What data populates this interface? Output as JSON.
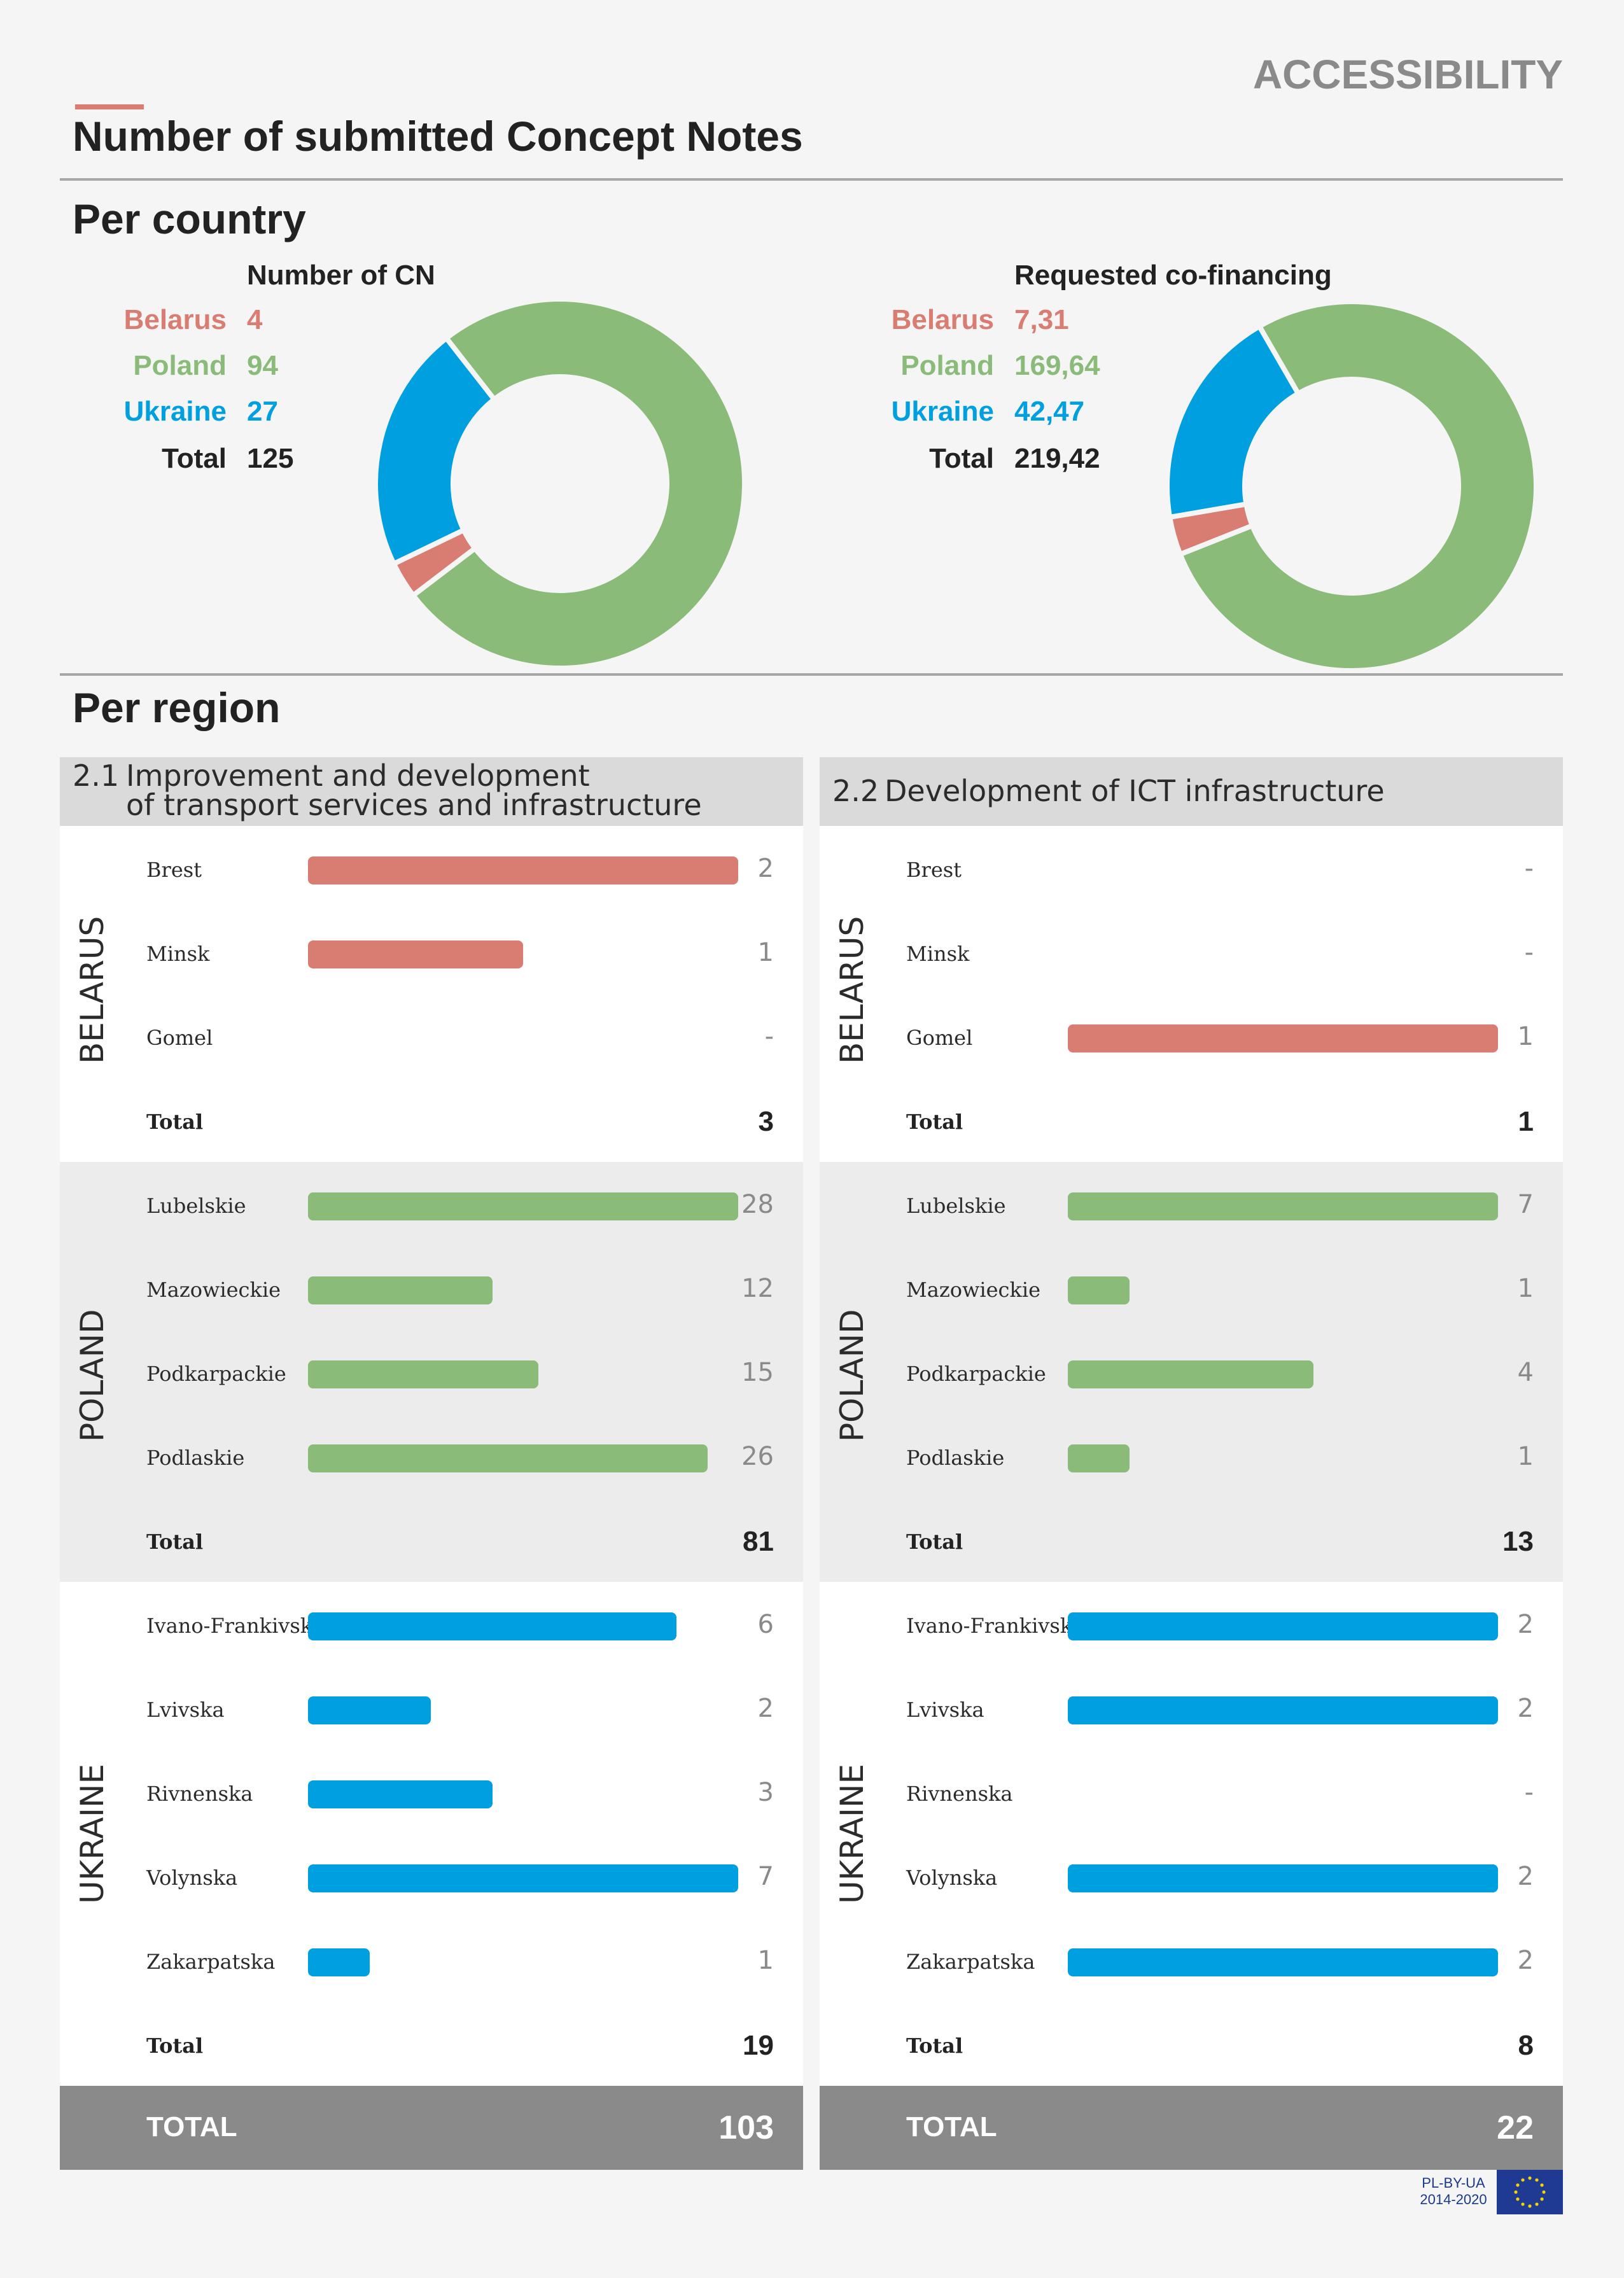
{
  "header": {
    "section_label": "ACCESSIBILITY",
    "title": "Number of submitted Concept Notes"
  },
  "per_country": {
    "heading": "Per country",
    "cn_heading": "Number of CN",
    "cofin_heading": "Requested co-financing",
    "labels": {
      "belarus": "Belarus",
      "poland": "Poland",
      "ukraine": "Ukraine",
      "total": "Total"
    },
    "cn_values": {
      "belarus": "4",
      "poland": "94",
      "ukraine": "27",
      "total": "125"
    },
    "cofin_values": {
      "belarus": "7,31",
      "poland": "169,64",
      "ukraine": "42,47",
      "total": "219,42"
    }
  },
  "per_region": {
    "heading": "Per region",
    "panels": [
      {
        "num": "2.1",
        "title_line1": "Improvement and development",
        "title_line2": "of transport services and infrastructure",
        "grand_label": "TOTAL",
        "grand_value": "103"
      },
      {
        "num": "2.2",
        "title_line1": "Development of ICT infrastructure",
        "title_line2": "",
        "grand_label": "TOTAL",
        "grand_value": "22"
      }
    ],
    "country_labels": {
      "belarus": "BELARUS",
      "poland": "POLAND",
      "ukraine": "UKRAINE"
    },
    "total_label": "Total"
  },
  "colors": {
    "belarus": "#d97d72",
    "poland": "#8abb78",
    "ukraine": "#009fe0",
    "rule": "#a6a6a6",
    "grand_total_bg": "#8a8a8a"
  },
  "chart_data": [
    {
      "type": "pie",
      "title": "Number of CN",
      "donut": true,
      "categories": [
        "Belarus",
        "Poland",
        "Ukraine"
      ],
      "values": [
        4,
        94,
        27
      ],
      "total": 125,
      "colors": [
        "#d97d72",
        "#8abb78",
        "#009fe0"
      ]
    },
    {
      "type": "pie",
      "title": "Requested co-financing",
      "donut": true,
      "categories": [
        "Belarus",
        "Poland",
        "Ukraine"
      ],
      "values": [
        7.31,
        169.64,
        42.47
      ],
      "total": 219.42,
      "colors": [
        "#d97d72",
        "#8abb78",
        "#009fe0"
      ]
    },
    {
      "type": "bar",
      "orientation": "horizontal",
      "title": "2.1 Improvement and development of transport services and infrastructure",
      "xlim": [
        0,
        7
      ],
      "groups": [
        {
          "country": "BELARUS",
          "categories": [
            "Brest",
            "Minsk",
            "Gomel"
          ],
          "values": [
            2,
            1,
            null
          ],
          "labels": [
            "2",
            "1",
            "-"
          ],
          "total": 3
        },
        {
          "country": "POLAND",
          "categories": [
            "Lubelskie",
            "Mazowieckie",
            "Podkarpackie",
            "Podlaskie"
          ],
          "values": [
            28,
            12,
            15,
            26
          ],
          "labels": [
            "28",
            "12",
            "15",
            "26"
          ],
          "total": 81
        },
        {
          "country": "UKRAINE",
          "categories": [
            "Ivano-Frankivska",
            "Lvivska",
            "Rivnenska",
            "Volynska",
            "Zakarpatska"
          ],
          "values": [
            6,
            2,
            3,
            7,
            1
          ],
          "labels": [
            "6",
            "2",
            "3",
            "7",
            "1"
          ],
          "total": 19
        }
      ],
      "grand_total": 103
    },
    {
      "type": "bar",
      "orientation": "horizontal",
      "title": "2.2 Development of ICT infrastructure",
      "groups": [
        {
          "country": "BELARUS",
          "categories": [
            "Brest",
            "Minsk",
            "Gomel"
          ],
          "values": [
            null,
            null,
            1
          ],
          "labels": [
            "-",
            "-",
            "1"
          ],
          "total": 1
        },
        {
          "country": "POLAND",
          "categories": [
            "Lubelskie",
            "Mazowieckie",
            "Podkarpackie",
            "Podlaskie"
          ],
          "values": [
            7,
            1,
            4,
            1
          ],
          "labels": [
            "7",
            "1",
            "4",
            "1"
          ],
          "total": 13
        },
        {
          "country": "UKRAINE",
          "categories": [
            "Ivano-Frankivska",
            "Lvivska",
            "Rivnenska",
            "Volynska",
            "Zakarpatska"
          ],
          "values": [
            2,
            2,
            null,
            2,
            2
          ],
          "labels": [
            "2",
            "2",
            "-",
            "2",
            "2"
          ],
          "total": 8
        }
      ],
      "grand_total": 22
    }
  ],
  "footer": {
    "logo_line1": "PL-BY-UA",
    "logo_line2": "2014-2020"
  }
}
